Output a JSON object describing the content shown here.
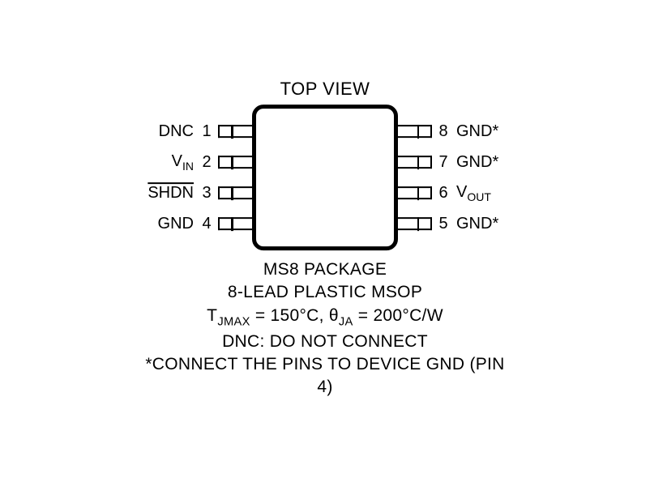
{
  "topLabel": "TOP VIEW",
  "leftPins": [
    {
      "label": "DNC",
      "num": "1",
      "sub": "",
      "overline": false
    },
    {
      "label": "V",
      "num": "2",
      "sub": "IN",
      "overline": false
    },
    {
      "label": "SHDN",
      "num": "3",
      "sub": "",
      "overline": true
    },
    {
      "label": "GND",
      "num": "4",
      "sub": "",
      "overline": false
    }
  ],
  "rightPins": [
    {
      "num": "8",
      "label": "GND*",
      "sub": "",
      "overline": false
    },
    {
      "num": "7",
      "label": "GND*",
      "sub": "",
      "overline": false
    },
    {
      "num": "6",
      "label": "V",
      "sub": "OUT",
      "overline": false
    },
    {
      "num": "5",
      "label": "GND*",
      "sub": "",
      "overline": false
    }
  ],
  "footer": {
    "line1": "MS8 PACKAGE",
    "line2": "8-LEAD PLASTIC MSOP",
    "thermal": {
      "tjmax_prefix": "T",
      "tjmax_sub": "JMAX",
      "tjmax_val": " = 150°C, ",
      "theta": "θ",
      "theta_sub": "JA",
      "theta_val": " = 200°C/W"
    },
    "line4": "DNC: DO NOT CONNECT",
    "line5": "*CONNECT THE PINS TO DEVICE GND (PIN 4)"
  },
  "colors": {
    "stroke": "#000000",
    "bg": "#ffffff"
  }
}
